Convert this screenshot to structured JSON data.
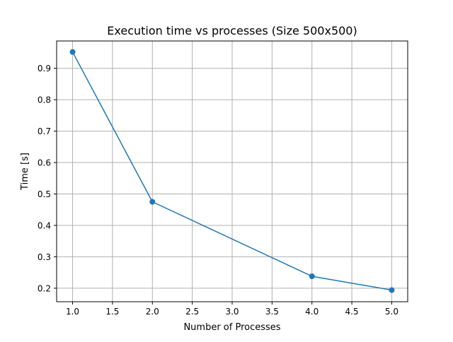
{
  "chart_data": {
    "type": "line",
    "title": "Execution time vs processes (Size 500x500)",
    "xlabel": "Number of Processes",
    "ylabel": "Time [s]",
    "xlim": [
      0.8,
      5.2
    ],
    "ylim": [
      0.157,
      0.987
    ],
    "xticks": [
      1.0,
      1.5,
      2.0,
      2.5,
      3.0,
      3.5,
      4.0,
      4.5,
      5.0
    ],
    "xtick_labels": [
      "1.0",
      "1.5",
      "2.0",
      "2.5",
      "3.0",
      "3.5",
      "4.0",
      "4.5",
      "5.0"
    ],
    "yticks": [
      0.2,
      0.3,
      0.4,
      0.5,
      0.6,
      0.7,
      0.8,
      0.9
    ],
    "ytick_labels": [
      "0.2",
      "0.3",
      "0.4",
      "0.5",
      "0.6",
      "0.7",
      "0.8",
      "0.9"
    ],
    "grid": true,
    "series": [
      {
        "color": "#1f77b4",
        "marker": "circle",
        "x": [
          1,
          2,
          4,
          5
        ],
        "y": [
          0.952,
          0.475,
          0.238,
          0.194
        ]
      }
    ]
  }
}
